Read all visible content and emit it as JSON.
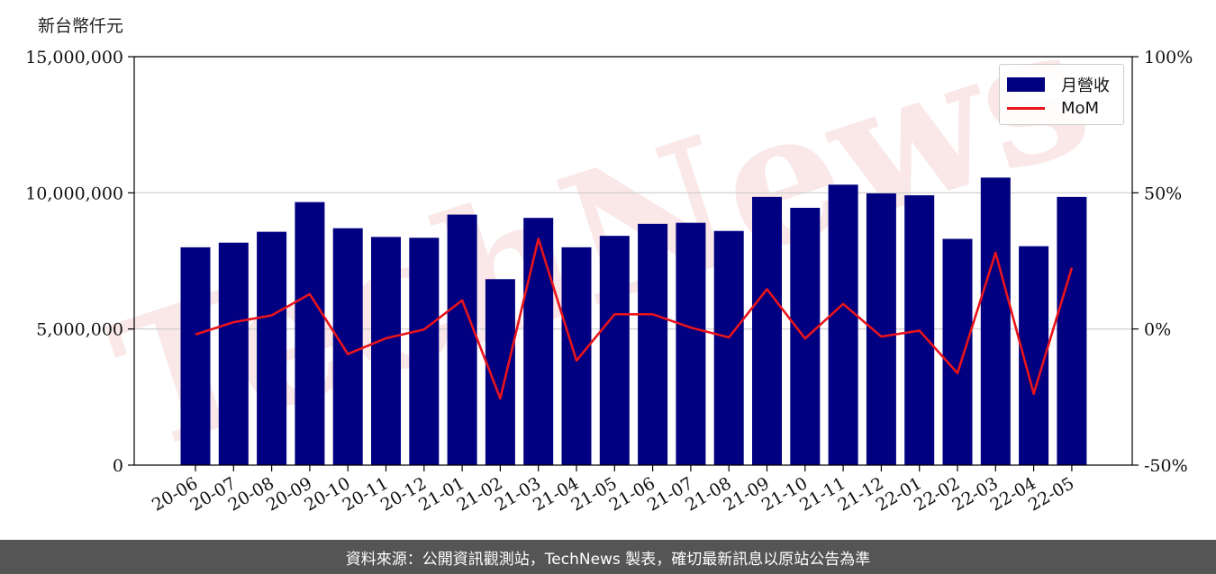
{
  "unit_label": "新台幣仟元",
  "footer_text": "資料來源：公開資訊觀測站，TechNews 製表，確切最新訊息以原站公告為準",
  "watermark_text": "TechNews",
  "colors": {
    "bar": "#000080",
    "line": "#e8141c",
    "watermark": "#f6d5d5",
    "grid": "#cccccc",
    "footer_bg": "#555555"
  },
  "chart_data": {
    "type": "bar",
    "categories": [
      "20-06",
      "20-07",
      "20-08",
      "20-09",
      "20-10",
      "20-11",
      "20-12",
      "21-01",
      "21-02",
      "21-03",
      "21-04",
      "21-05",
      "21-06",
      "21-07",
      "21-08",
      "21-09",
      "21-10",
      "21-11",
      "21-12",
      "22-01",
      "22-02",
      "22-03",
      "22-04",
      "22-05"
    ],
    "series": [
      {
        "name": "月營收",
        "axis": "left",
        "kind": "bar",
        "values": [
          8000000,
          8170000,
          8570000,
          9660000,
          8700000,
          8380000,
          8350000,
          9200000,
          6830000,
          9080000,
          8000000,
          8420000,
          8860000,
          8900000,
          8600000,
          9850000,
          9450000,
          10300000,
          9980000,
          9910000,
          8310000,
          10560000,
          8040000,
          9850000
        ]
      },
      {
        "name": "MoM",
        "axis": "right",
        "kind": "line",
        "values": [
          -2,
          2.5,
          5,
          12.8,
          -9.2,
          -3.4,
          -0.2,
          10.5,
          -25.5,
          33.1,
          -11.6,
          5.4,
          5.4,
          0.5,
          -3.1,
          14.6,
          -3.5,
          9.2,
          -2.8,
          -0.6,
          -16.2,
          28,
          -23.8,
          22.5
        ]
      }
    ],
    "left_axis": {
      "ylim": [
        0,
        15000000
      ],
      "ticks": [
        "0",
        "5,000,000",
        "10,000,000",
        "15,000,000"
      ],
      "tick_values": [
        0,
        5000000,
        10000000,
        15000000
      ]
    },
    "right_axis": {
      "ylim": [
        -50,
        100
      ],
      "ticks": [
        "-50%",
        "0%",
        "50%",
        "100%"
      ],
      "tick_values": [
        -50,
        0,
        50,
        100
      ]
    },
    "grid": "horizontal",
    "legend_position": "top-right"
  }
}
